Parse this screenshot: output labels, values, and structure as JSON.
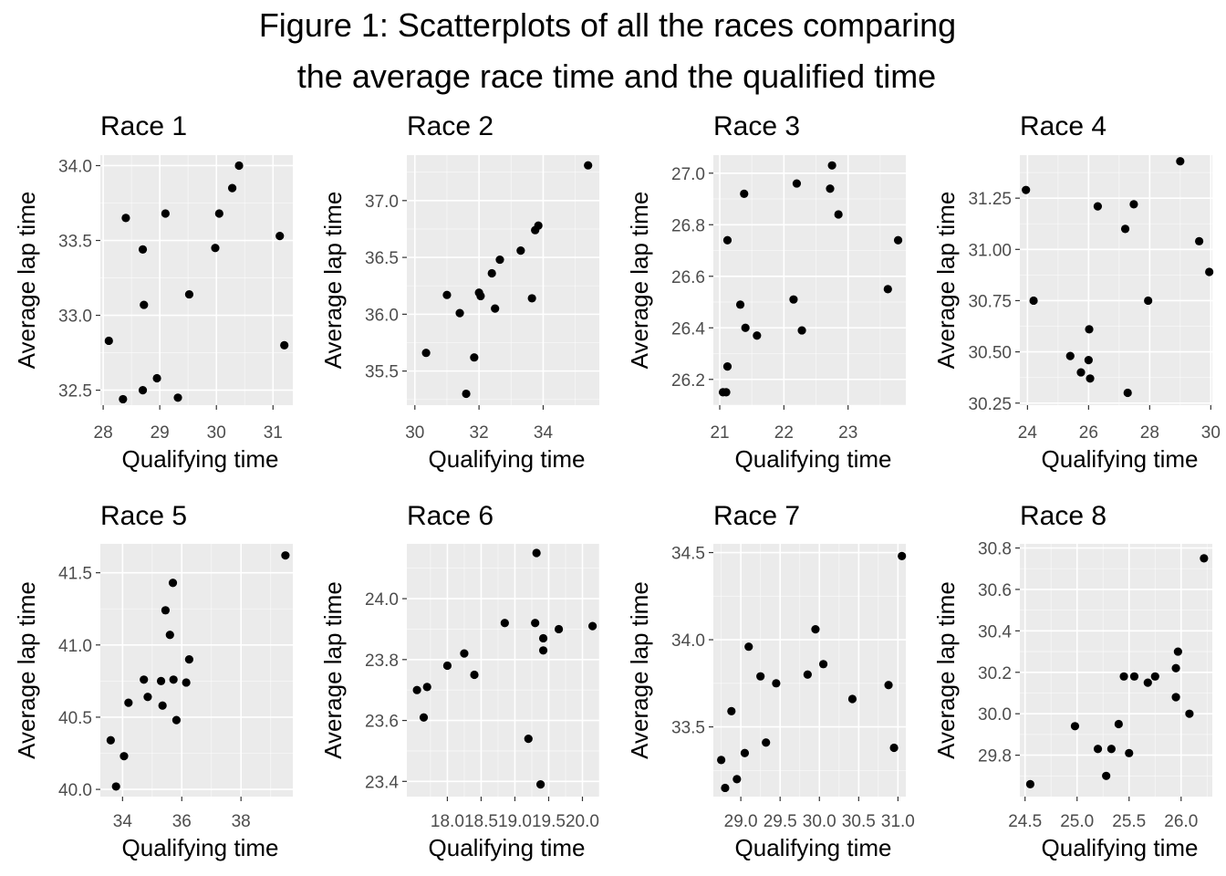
{
  "figure": {
    "title_line1": "Figure 1: Scatterplots of all the races comparing",
    "title_line2": "the average race time and the qualified time"
  },
  "colors": {
    "panel_bg": "#ebebeb",
    "grid_major": "#ffffff",
    "point": "#000000",
    "tick_text": "#4d4d4d"
  },
  "chart_data": [
    {
      "type": "scatter",
      "title": "Race 1",
      "xlabel": "Qualifying time",
      "ylabel": "Average lap time",
      "xlim": [
        27.95,
        31.35
      ],
      "ylim": [
        32.4,
        34.07
      ],
      "xticks": [
        28,
        29,
        30,
        31
      ],
      "xtick_labels": [
        "28",
        "29",
        "30",
        "31"
      ],
      "yticks": [
        32.5,
        33.0,
        33.5,
        34.0
      ],
      "ytick_labels": [
        "32.5",
        "33.0",
        "33.5",
        "34.0"
      ],
      "points": [
        [
          28.1,
          32.83
        ],
        [
          28.35,
          32.44
        ],
        [
          28.4,
          33.65
        ],
        [
          28.7,
          32.5
        ],
        [
          28.7,
          33.44
        ],
        [
          28.72,
          33.07
        ],
        [
          28.95,
          32.58
        ],
        [
          29.1,
          33.68
        ],
        [
          29.32,
          32.45
        ],
        [
          29.52,
          33.14
        ],
        [
          29.98,
          33.45
        ],
        [
          30.05,
          33.68
        ],
        [
          30.28,
          33.85
        ],
        [
          30.4,
          34.0
        ],
        [
          31.12,
          33.53
        ],
        [
          31.2,
          32.8
        ]
      ]
    },
    {
      "type": "scatter",
      "title": "Race 2",
      "xlabel": "Qualifying time",
      "ylabel": "Average lap time",
      "xlim": [
        29.75,
        35.75
      ],
      "ylim": [
        35.2,
        37.4
      ],
      "xticks": [
        30,
        32,
        34
      ],
      "xtick_labels": [
        "30",
        "32",
        "34"
      ],
      "yticks": [
        35.5,
        36.0,
        36.5,
        37.0
      ],
      "ytick_labels": [
        "35.5",
        "36.0",
        "36.5",
        "37.0"
      ],
      "points": [
        [
          30.35,
          35.66
        ],
        [
          31.0,
          36.17
        ],
        [
          31.4,
          36.01
        ],
        [
          31.6,
          35.3
        ],
        [
          31.85,
          35.62
        ],
        [
          32.0,
          36.19
        ],
        [
          32.05,
          36.16
        ],
        [
          32.4,
          36.36
        ],
        [
          32.5,
          36.05
        ],
        [
          32.65,
          36.48
        ],
        [
          33.3,
          36.56
        ],
        [
          33.65,
          36.14
        ],
        [
          33.75,
          36.74
        ],
        [
          33.85,
          36.78
        ],
        [
          35.4,
          37.31
        ]
      ]
    },
    {
      "type": "scatter",
      "title": "Race 3",
      "xlabel": "Qualifying time",
      "ylabel": "Average lap time",
      "xlim": [
        20.9,
        23.9
      ],
      "ylim": [
        26.1,
        27.07
      ],
      "xticks": [
        21,
        22,
        23
      ],
      "xtick_labels": [
        "21",
        "22",
        "23"
      ],
      "yticks": [
        26.2,
        26.4,
        26.6,
        26.8,
        27.0
      ],
      "ytick_labels": [
        "26.2",
        "26.4",
        "26.6",
        "26.8",
        "27.0"
      ],
      "points": [
        [
          21.05,
          26.15
        ],
        [
          21.1,
          26.15
        ],
        [
          21.12,
          26.25
        ],
        [
          21.12,
          26.74
        ],
        [
          21.32,
          26.49
        ],
        [
          21.38,
          26.92
        ],
        [
          21.4,
          26.4
        ],
        [
          21.58,
          26.37
        ],
        [
          22.15,
          26.51
        ],
        [
          22.2,
          26.96
        ],
        [
          22.28,
          26.39
        ],
        [
          22.72,
          26.94
        ],
        [
          22.75,
          27.03
        ],
        [
          22.85,
          26.84
        ],
        [
          23.62,
          26.55
        ],
        [
          23.78,
          26.74
        ]
      ]
    },
    {
      "type": "scatter",
      "title": "Race 4",
      "xlabel": "Qualifying time",
      "ylabel": "Average lap time",
      "xlim": [
        23.75,
        30.05
      ],
      "ylim": [
        30.24,
        31.46
      ],
      "xticks": [
        24,
        26,
        28,
        30
      ],
      "xtick_labels": [
        "24",
        "26",
        "28",
        "30"
      ],
      "yticks": [
        30.25,
        30.5,
        30.75,
        31.0,
        31.25
      ],
      "ytick_labels": [
        "30.25",
        "30.50",
        "30.75",
        "31.00",
        "31.25"
      ],
      "points": [
        [
          23.95,
          31.29
        ],
        [
          24.2,
          30.75
        ],
        [
          25.4,
          30.48
        ],
        [
          25.75,
          30.4
        ],
        [
          26.0,
          30.46
        ],
        [
          26.02,
          30.61
        ],
        [
          26.05,
          30.37
        ],
        [
          26.3,
          31.21
        ],
        [
          27.2,
          31.1
        ],
        [
          27.28,
          30.3
        ],
        [
          27.48,
          31.22
        ],
        [
          27.95,
          30.75
        ],
        [
          29.0,
          31.43
        ],
        [
          29.62,
          31.04
        ],
        [
          29.95,
          30.89
        ]
      ]
    },
    {
      "type": "scatter",
      "title": "Race 5",
      "xlabel": "Qualifying time",
      "ylabel": "Average lap time",
      "xlim": [
        33.25,
        39.75
      ],
      "ylim": [
        39.95,
        41.7
      ],
      "xticks": [
        34,
        36,
        38
      ],
      "xtick_labels": [
        "34",
        "36",
        "38"
      ],
      "yticks": [
        40.0,
        40.5,
        41.0,
        41.5
      ],
      "ytick_labels": [
        "40.0",
        "40.5",
        "41.0",
        "41.5"
      ],
      "points": [
        [
          33.6,
          40.34
        ],
        [
          33.78,
          40.02
        ],
        [
          34.05,
          40.23
        ],
        [
          34.2,
          40.6
        ],
        [
          34.72,
          40.76
        ],
        [
          34.85,
          40.64
        ],
        [
          35.3,
          40.75
        ],
        [
          35.35,
          40.58
        ],
        [
          35.45,
          41.24
        ],
        [
          35.6,
          41.07
        ],
        [
          35.7,
          41.43
        ],
        [
          35.72,
          40.76
        ],
        [
          35.82,
          40.48
        ],
        [
          36.15,
          40.74
        ],
        [
          36.25,
          40.9
        ],
        [
          39.5,
          41.62
        ]
      ]
    },
    {
      "type": "scatter",
      "title": "Race 6",
      "xlabel": "Qualifying time",
      "ylabel": "Average lap time",
      "xlim": [
        17.4,
        20.25
      ],
      "ylim": [
        23.35,
        24.18
      ],
      "xticks": [
        18.0,
        18.5,
        19.0,
        19.5,
        20.0
      ],
      "xtick_labels": [
        "18.0",
        "18.5",
        "19.0",
        "19.5",
        "20.0"
      ],
      "yticks": [
        23.4,
        23.6,
        23.8,
        24.0
      ],
      "ytick_labels": [
        "23.4",
        "23.6",
        "23.8",
        "24.0"
      ],
      "points": [
        [
          17.55,
          23.7
        ],
        [
          17.65,
          23.61
        ],
        [
          17.7,
          23.71
        ],
        [
          18.0,
          23.78
        ],
        [
          18.25,
          23.82
        ],
        [
          18.4,
          23.75
        ],
        [
          18.85,
          23.92
        ],
        [
          19.2,
          23.54
        ],
        [
          19.3,
          23.92
        ],
        [
          19.32,
          24.15
        ],
        [
          19.38,
          23.39
        ],
        [
          19.42,
          23.83
        ],
        [
          19.42,
          23.87
        ],
        [
          19.65,
          23.9
        ],
        [
          20.15,
          23.91
        ]
      ]
    },
    {
      "type": "scatter",
      "title": "Race 7",
      "xlabel": "Qualifying time",
      "ylabel": "Average lap time",
      "xlim": [
        28.65,
        31.1
      ],
      "ylim": [
        33.1,
        34.55
      ],
      "xticks": [
        29.0,
        29.5,
        30.0,
        30.5,
        31.0
      ],
      "xtick_labels": [
        "29.0",
        "29.5",
        "30.0",
        "30.5",
        "31.0"
      ],
      "yticks": [
        33.5,
        34.0,
        34.5
      ],
      "ytick_labels": [
        "33.5",
        "34.0",
        "34.5"
      ],
      "points": [
        [
          28.75,
          33.31
        ],
        [
          28.8,
          33.15
        ],
        [
          28.88,
          33.59
        ],
        [
          28.95,
          33.2
        ],
        [
          29.05,
          33.35
        ],
        [
          29.1,
          33.96
        ],
        [
          29.25,
          33.79
        ],
        [
          29.32,
          33.41
        ],
        [
          29.45,
          33.75
        ],
        [
          29.85,
          33.8
        ],
        [
          29.95,
          34.06
        ],
        [
          30.05,
          33.86
        ],
        [
          30.42,
          33.66
        ],
        [
          30.88,
          33.74
        ],
        [
          30.95,
          33.38
        ],
        [
          31.05,
          34.48
        ]
      ]
    },
    {
      "type": "scatter",
      "title": "Race 8",
      "xlabel": "Qualifying time",
      "ylabel": "Average lap time",
      "xlim": [
        24.45,
        26.3
      ],
      "ylim": [
        29.6,
        30.82
      ],
      "xticks": [
        24.5,
        25.0,
        25.5,
        26.0
      ],
      "xtick_labels": [
        "24.5",
        "25.0",
        "25.5",
        "26.0"
      ],
      "yticks": [
        29.8,
        30.0,
        30.2,
        30.4,
        30.6,
        30.8
      ],
      "ytick_labels": [
        "29.8",
        "30.0",
        "30.2",
        "30.4",
        "30.6",
        "30.8"
      ],
      "points": [
        [
          24.55,
          29.66
        ],
        [
          24.98,
          29.94
        ],
        [
          25.2,
          29.83
        ],
        [
          25.28,
          29.7
        ],
        [
          25.33,
          29.83
        ],
        [
          25.4,
          29.95
        ],
        [
          25.45,
          30.18
        ],
        [
          25.5,
          29.81
        ],
        [
          25.55,
          30.18
        ],
        [
          25.68,
          30.15
        ],
        [
          25.75,
          30.18
        ],
        [
          25.95,
          30.22
        ],
        [
          25.95,
          30.08
        ],
        [
          25.97,
          30.3
        ],
        [
          26.08,
          30.0
        ],
        [
          26.22,
          30.75
        ]
      ]
    }
  ]
}
